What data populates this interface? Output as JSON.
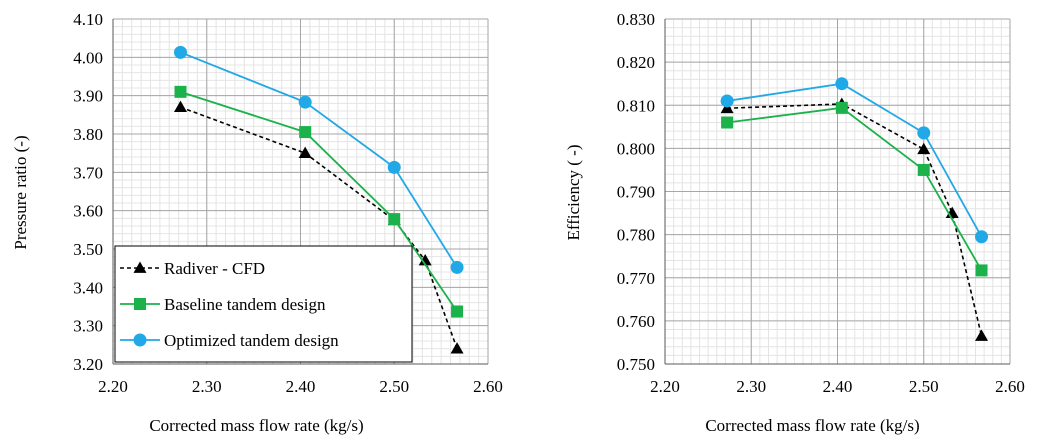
{
  "chart_data": [
    {
      "type": "line",
      "title": "",
      "xlabel": "Corrected mass flow rate (kg/s)",
      "ylabel": "Pressure ratio (-)",
      "xlim": [
        2.2,
        2.6
      ],
      "ylim": [
        3.2,
        4.1
      ],
      "x_ticks": [
        2.2,
        2.3,
        2.4,
        2.5,
        2.6
      ],
      "x_tick_labels": [
        "2.20",
        "2.30",
        "2.40",
        "2.50",
        "2.60"
      ],
      "y_ticks": [
        3.2,
        3.3,
        3.4,
        3.5,
        3.6,
        3.7,
        3.8,
        3.9,
        4.0,
        4.1
      ],
      "y_tick_labels": [
        "3.20",
        "3.30",
        "3.40",
        "3.50",
        "3.60",
        "3.70",
        "3.80",
        "3.90",
        "4.00",
        "4.10"
      ],
      "grid": true,
      "legend_position": "bottom-left",
      "series": [
        {
          "name": "Radiver - CFD",
          "color": "#000000",
          "marker": "triangle",
          "dashed": true,
          "x": [
            2.272,
            2.405,
            2.5,
            2.533,
            2.567
          ],
          "y": [
            3.87,
            3.75,
            3.575,
            3.47,
            3.24
          ]
        },
        {
          "name": "Baseline tandem design",
          "color": "#1bb24b",
          "marker": "square",
          "dashed": false,
          "x": [
            2.272,
            2.405,
            2.5,
            2.567
          ],
          "y": [
            3.91,
            3.805,
            3.578,
            3.337
          ]
        },
        {
          "name": "Optimized tandem design",
          "color": "#21a8e6",
          "marker": "circle",
          "dashed": false,
          "x": [
            2.272,
            2.405,
            2.5,
            2.567
          ],
          "y": [
            4.013,
            3.883,
            3.713,
            3.452
          ]
        }
      ]
    },
    {
      "type": "line",
      "title": "",
      "xlabel": "Corrected mass flow rate (kg/s)",
      "ylabel": "Efficiency ( -)",
      "xlim": [
        2.2,
        2.6
      ],
      "ylim": [
        0.75,
        0.83
      ],
      "x_ticks": [
        2.2,
        2.3,
        2.4,
        2.5,
        2.6
      ],
      "x_tick_labels": [
        "2.20",
        "2.30",
        "2.40",
        "2.50",
        "2.60"
      ],
      "y_ticks": [
        0.75,
        0.76,
        0.77,
        0.78,
        0.79,
        0.8,
        0.81,
        0.82,
        0.83
      ],
      "y_tick_labels": [
        "0.750",
        "0.760",
        "0.770",
        "0.780",
        "0.790",
        "0.800",
        "0.810",
        "0.820",
        "0.830"
      ],
      "grid": true,
      "legend_position": "none",
      "series": [
        {
          "name": "Radiver - CFD",
          "color": "#000000",
          "marker": "triangle",
          "dashed": true,
          "x": [
            2.272,
            2.405,
            2.5,
            2.533,
            2.567
          ],
          "y": [
            0.8093,
            0.8103,
            0.7998,
            0.785,
            0.7565
          ]
        },
        {
          "name": "Baseline tandem design",
          "color": "#1bb24b",
          "marker": "square",
          "dashed": false,
          "x": [
            2.272,
            2.405,
            2.5,
            2.567
          ],
          "y": [
            0.806,
            0.8094,
            0.795,
            0.7717
          ]
        },
        {
          "name": "Optimized tandem design",
          "color": "#21a8e6",
          "marker": "circle",
          "dashed": false,
          "x": [
            2.272,
            2.405,
            2.5,
            2.567
          ],
          "y": [
            0.811,
            0.815,
            0.8036,
            0.7795
          ]
        }
      ]
    }
  ]
}
